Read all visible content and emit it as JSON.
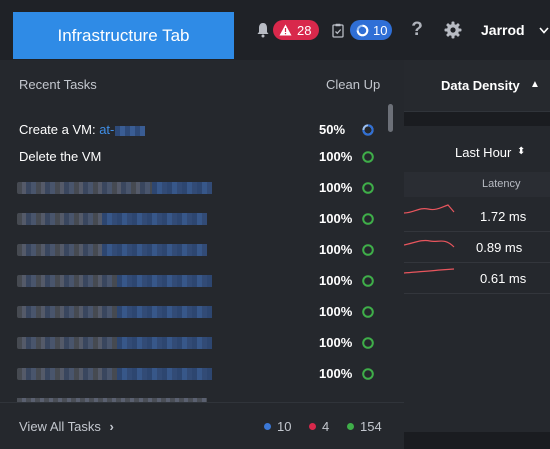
{
  "header": {
    "tab_label": "Infrastructure Tab",
    "alerts_count": "28",
    "tasks_count": "10",
    "help_label": "?",
    "user_name": "Jarrod"
  },
  "background": {
    "density_label": "Data Density",
    "time_range": "Last Hour",
    "latency_header": "Latency",
    "latency_values": [
      "1.72 ms",
      "0.89 ms",
      "0.61 ms"
    ]
  },
  "tasks_panel": {
    "title": "Recent Tasks",
    "clean_up": "Clean Up",
    "tasks": [
      {
        "name": "Create a VM: ",
        "link": "at-",
        "percent": "50%",
        "status": "running"
      },
      {
        "name": "Delete the VM",
        "link": "",
        "percent": "100%",
        "status": "succeeded"
      },
      {
        "name": "",
        "link": "",
        "percent": "100%",
        "status": "succeeded"
      },
      {
        "name": "",
        "link": "",
        "percent": "100%",
        "status": "succeeded"
      },
      {
        "name": "",
        "link": "",
        "percent": "100%",
        "status": "succeeded"
      },
      {
        "name": "",
        "link": "",
        "percent": "100%",
        "status": "succeeded"
      },
      {
        "name": "",
        "link": "",
        "percent": "100%",
        "status": "succeeded"
      },
      {
        "name": "",
        "link": "",
        "percent": "100%",
        "status": "succeeded"
      },
      {
        "name": "",
        "link": "",
        "percent": "100%",
        "status": "succeeded"
      }
    ],
    "view_all": "View All Tasks",
    "view_all_chevron": "›",
    "summary": [
      {
        "count": "10",
        "color": "#3b78d6"
      },
      {
        "count": "4",
        "color": "#d8284b"
      },
      {
        "count": "154",
        "color": "#3fae49"
      }
    ]
  },
  "colors": {
    "accent": "#2f8be6",
    "alert": "#d8284b",
    "task_badge": "#2f6fd6",
    "success": "#3fae49",
    "sparkline": "#e8555d"
  }
}
